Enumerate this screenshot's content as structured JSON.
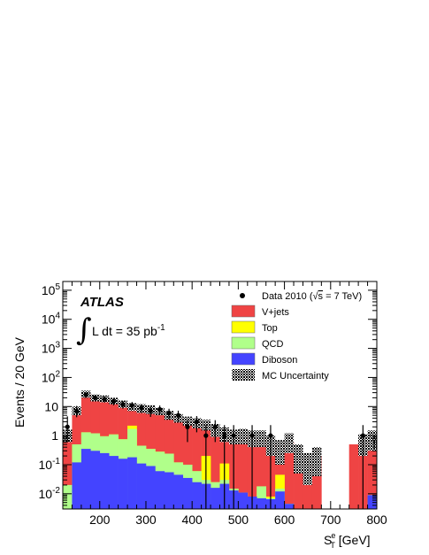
{
  "chart_data": {
    "type": "bar",
    "experiment_label": "ATLAS",
    "luminosity_label": {
      "prefix": "L dt = 35 pb",
      "superscript": "-1"
    },
    "xlabel": {
      "symbol": "S",
      "superscript": "e",
      "subscript": "T",
      "unit": " [GeV]"
    },
    "ylabel": "Events / 20 GeV",
    "xlim": [
      120,
      800
    ],
    "ylim": [
      0.003,
      200000
    ],
    "y_scale": "log",
    "x_ticks": [
      200,
      300,
      400,
      500,
      600,
      700,
      800
    ],
    "y_ticks": [
      {
        "value": 0.01,
        "base": "10",
        "exp": "-2"
      },
      {
        "value": 0.1,
        "base": "10",
        "exp": "-1"
      },
      {
        "value": 1,
        "base": "1",
        "exp": ""
      },
      {
        "value": 10,
        "base": "10",
        "exp": ""
      },
      {
        "value": 100,
        "base": "10",
        "exp": "2"
      },
      {
        "value": 1000,
        "base": "10",
        "exp": "3"
      },
      {
        "value": 10000,
        "base": "10",
        "exp": "4"
      },
      {
        "value": 100000,
        "base": "10",
        "exp": "5"
      }
    ],
    "legend": {
      "position": "top-right",
      "data_label": {
        "prefix": "Data 2010 (",
        "root": "s",
        "suffix": " = 7 TeV)"
      },
      "entries": [
        {
          "name": "V+jets",
          "color": "#ef4444",
          "style": "fill"
        },
        {
          "name": "Top",
          "color": "#ffff00",
          "style": "fill"
        },
        {
          "name": "QCD",
          "color": "#b0ff8a",
          "style": "fill"
        },
        {
          "name": "Diboson",
          "color": "#4444ff",
          "style": "fill"
        },
        {
          "name": "MC Uncertainty",
          "color": "#000000",
          "style": "hatch"
        }
      ]
    },
    "bin_edges": [
      120,
      140,
      160,
      180,
      200,
      220,
      240,
      260,
      280,
      300,
      320,
      340,
      360,
      380,
      400,
      420,
      440,
      460,
      480,
      500,
      520,
      540,
      560,
      580,
      600,
      620,
      640,
      660,
      680,
      700,
      720,
      740,
      760,
      780,
      800
    ],
    "stack_tops": {
      "diboson": [
        0.0015,
        0.12,
        0.35,
        0.3,
        0.25,
        0.2,
        0.16,
        0.18,
        0.11,
        0.09,
        0.06,
        0.055,
        0.045,
        0.035,
        0.025,
        0.022,
        0.016,
        0.022,
        0.013,
        0.011,
        0.008,
        0.007,
        0.0065,
        0.012,
        0.0045,
        0.003,
        0.003,
        0.003,
        0.003,
        0.003,
        0.003,
        0.003,
        0.003,
        0.009
      ],
      "qcd": [
        0.02,
        0.5,
        1.3,
        1.2,
        0.95,
        1.1,
        0.75,
        1.7,
        0.45,
        0.35,
        0.28,
        0.24,
        0.12,
        0.1,
        0.06,
        0.03,
        0.025,
        0.03,
        0.015,
        0.011,
        0.008,
        0.018,
        0.007,
        0.015,
        0.0045,
        0.003,
        0.003,
        0.003,
        0.003,
        0.003,
        0.003,
        0.003,
        0.003,
        0.009
      ],
      "top": [
        0.02,
        0.5,
        1.3,
        1.2,
        0.95,
        1.1,
        0.75,
        2.2,
        0.45,
        0.35,
        0.28,
        0.24,
        0.12,
        0.1,
        0.06,
        0.2,
        0.025,
        0.11,
        0.015,
        0.011,
        0.008,
        0.018,
        0.008,
        0.045,
        0.0045,
        0.003,
        0.003,
        0.003,
        0.003,
        0.003,
        0.003,
        0.003,
        0.003,
        0.009
      ],
      "vjets": [
        1,
        8,
        27,
        21,
        19,
        16,
        13,
        10,
        9,
        8,
        7,
        5,
        4,
        3.2,
        2.8,
        2.4,
        1.6,
        1.1,
        0.9,
        1.0,
        0.8,
        0.8,
        0.5,
        0.3,
        0.6,
        0.2,
        0.1,
        0.2,
        0.003,
        0.003,
        0.003,
        0.5,
        0.7,
        0.7
      ]
    },
    "uncertainty_bands": [
      {
        "x0": 120,
        "x1": 140,
        "lo": 0.6,
        "hi": 1.6
      },
      {
        "x0": 140,
        "x1": 160,
        "lo": 5,
        "hi": 10
      },
      {
        "x0": 160,
        "x1": 180,
        "lo": 20,
        "hi": 35
      },
      {
        "x0": 180,
        "x1": 200,
        "lo": 15,
        "hi": 26
      },
      {
        "x0": 200,
        "x1": 220,
        "lo": 14,
        "hi": 24
      },
      {
        "x0": 220,
        "x1": 240,
        "lo": 12,
        "hi": 20
      },
      {
        "x0": 240,
        "x1": 260,
        "lo": 9,
        "hi": 16
      },
      {
        "x0": 260,
        "x1": 280,
        "lo": 7,
        "hi": 13
      },
      {
        "x0": 280,
        "x1": 300,
        "lo": 6,
        "hi": 12
      },
      {
        "x0": 300,
        "x1": 320,
        "lo": 5.5,
        "hi": 11
      },
      {
        "x0": 320,
        "x1": 340,
        "lo": 5,
        "hi": 9
      },
      {
        "x0": 340,
        "x1": 360,
        "lo": 3.5,
        "hi": 7
      },
      {
        "x0": 360,
        "x1": 380,
        "lo": 2.8,
        "hi": 5.5
      },
      {
        "x0": 380,
        "x1": 400,
        "lo": 2.2,
        "hi": 4.5
      },
      {
        "x0": 400,
        "x1": 420,
        "lo": 1.8,
        "hi": 4
      },
      {
        "x0": 420,
        "x1": 440,
        "lo": 1.5,
        "hi": 3.5
      },
      {
        "x0": 440,
        "x1": 460,
        "lo": 0.9,
        "hi": 2.5
      },
      {
        "x0": 460,
        "x1": 480,
        "lo": 0.6,
        "hi": 1.9
      },
      {
        "x0": 480,
        "x1": 500,
        "lo": 0.5,
        "hi": 1.6
      },
      {
        "x0": 500,
        "x1": 520,
        "lo": 0.5,
        "hi": 1.7
      },
      {
        "x0": 520,
        "x1": 540,
        "lo": 0.4,
        "hi": 1.5
      },
      {
        "x0": 540,
        "x1": 560,
        "lo": 0.4,
        "hi": 1.5
      },
      {
        "x0": 560,
        "x1": 580,
        "lo": 0.2,
        "hi": 1.0
      },
      {
        "x0": 580,
        "x1": 600,
        "lo": 0.1,
        "hi": 0.7
      },
      {
        "x0": 600,
        "x1": 620,
        "lo": 0.25,
        "hi": 1.2
      },
      {
        "x0": 620,
        "x1": 640,
        "lo": 0.05,
        "hi": 0.5
      },
      {
        "x0": 640,
        "x1": 660,
        "lo": 0.02,
        "hi": 0.25
      },
      {
        "x0": 660,
        "x1": 680,
        "lo": 0.04,
        "hi": 0.4
      },
      {
        "x0": 760,
        "x1": 780,
        "lo": 0.2,
        "hi": 1.1
      },
      {
        "x0": 780,
        "x1": 800,
        "lo": 0.3,
        "hi": 1.5
      }
    ],
    "data_points": [
      {
        "x": 130,
        "y": 2,
        "lo": 0.6,
        "hi": 4.6
      },
      {
        "x": 150,
        "y": 7,
        "lo": 4.3,
        "hi": 10.5
      },
      {
        "x": 170,
        "y": 25,
        "lo": 20,
        "hi": 30
      },
      {
        "x": 190,
        "y": 20,
        "lo": 15.5,
        "hi": 24.5
      },
      {
        "x": 210,
        "y": 18,
        "lo": 13.8,
        "hi": 22.2
      },
      {
        "x": 230,
        "y": 15,
        "lo": 11,
        "hi": 19
      },
      {
        "x": 250,
        "y": 12,
        "lo": 8.5,
        "hi": 15.5
      },
      {
        "x": 270,
        "y": 11,
        "lo": 7.7,
        "hi": 14.3
      },
      {
        "x": 290,
        "y": 9,
        "lo": 6,
        "hi": 12
      },
      {
        "x": 310,
        "y": 7,
        "lo": 4.4,
        "hi": 9.6
      },
      {
        "x": 330,
        "y": 8,
        "lo": 5.2,
        "hi": 10.8
      },
      {
        "x": 350,
        "y": 6,
        "lo": 3.6,
        "hi": 8.4
      },
      {
        "x": 370,
        "y": 5,
        "lo": 2.8,
        "hi": 7.2
      },
      {
        "x": 390,
        "y": 2,
        "lo": 0.6,
        "hi": 3.4
      },
      {
        "x": 410,
        "y": 3,
        "lo": 1.3,
        "hi": 4.7
      },
      {
        "x": 430,
        "y": 1,
        "lo": 0.003,
        "hi": 2.3
      },
      {
        "x": 450,
        "y": 2,
        "lo": 0.6,
        "hi": 3.4
      },
      {
        "x": 470,
        "y": 1,
        "lo": 0.003,
        "hi": 2.3
      },
      {
        "x": 490,
        "y": 1,
        "lo": 0.003,
        "hi": 2.3
      },
      {
        "x": 530,
        "y": 1,
        "lo": 0.003,
        "hi": 2.3
      },
      {
        "x": 570,
        "y": 1,
        "lo": 0.003,
        "hi": 2.3
      },
      {
        "x": 770,
        "y": 1,
        "lo": 0.003,
        "hi": 2.3
      }
    ]
  }
}
